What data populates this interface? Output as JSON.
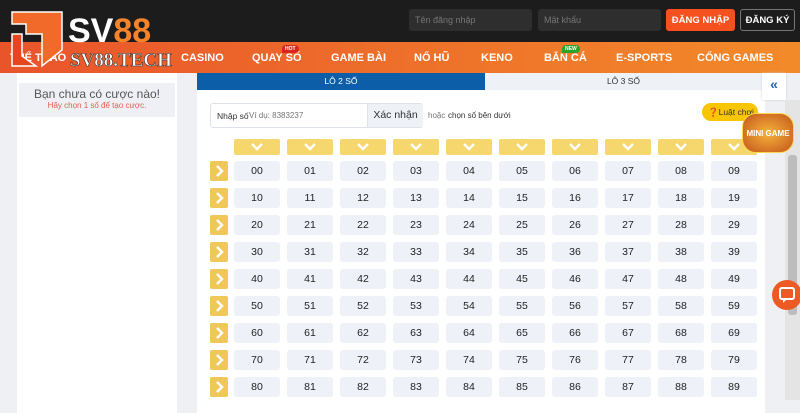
{
  "header": {
    "brand": "SV88",
    "brand_sub": "SV88.TECH",
    "username_placeholder": "Tên đăng nhập",
    "password_placeholder": "Mật khẩu",
    "login_label": "ĐĂNG NHẬP",
    "register_label": "ĐĂNG KÝ"
  },
  "nav": {
    "items": [
      {
        "label": "THỂ THAO"
      },
      {
        "label": "CASINO"
      },
      {
        "label": "QUAY SỐ",
        "badge": "HOT"
      },
      {
        "label": "GAME BÀI"
      },
      {
        "label": "NỔ HŨ"
      },
      {
        "label": "KENO"
      },
      {
        "label": "BẮN CÁ",
        "badge": "NEW"
      },
      {
        "label": "E-SPORTS"
      },
      {
        "label": "CỔNG GAMES"
      }
    ]
  },
  "betslip": {
    "title": "Bạn chưa có cược nào!",
    "hint": "Hãy chọn 1 số để tạo cược."
  },
  "tabs": [
    {
      "label": "LÔ 2 SỐ",
      "active": true
    },
    {
      "label": "LÔ 3 SỐ",
      "active": false
    }
  ],
  "entry": {
    "label": "Nhập số",
    "placeholder": "Ví dụ: 8383237",
    "confirm_label": "Xác nhận",
    "or_text": "hoặc",
    "or_bold": "chọn số bên dưới",
    "rules_label": "Luật chơi"
  },
  "minigame_label": "MINI GAME",
  "grid": {
    "rows": [
      [
        "00",
        "01",
        "02",
        "03",
        "04",
        "05",
        "06",
        "07",
        "08",
        "09"
      ],
      [
        "10",
        "11",
        "12",
        "13",
        "14",
        "15",
        "16",
        "17",
        "18",
        "19"
      ],
      [
        "20",
        "21",
        "22",
        "23",
        "24",
        "25",
        "26",
        "27",
        "28",
        "29"
      ],
      [
        "30",
        "31",
        "32",
        "33",
        "34",
        "35",
        "36",
        "37",
        "38",
        "39"
      ],
      [
        "40",
        "41",
        "42",
        "43",
        "44",
        "45",
        "46",
        "47",
        "48",
        "49"
      ],
      [
        "50",
        "51",
        "52",
        "53",
        "54",
        "55",
        "56",
        "57",
        "58",
        "59"
      ],
      [
        "60",
        "61",
        "62",
        "63",
        "64",
        "65",
        "66",
        "67",
        "68",
        "69"
      ],
      [
        "70",
        "71",
        "72",
        "73",
        "74",
        "75",
        "76",
        "77",
        "78",
        "79"
      ],
      [
        "80",
        "81",
        "82",
        "83",
        "84",
        "85",
        "86",
        "87",
        "88",
        "89"
      ]
    ]
  },
  "colors": {
    "accent": "#f15a24",
    "tab_active": "#0d5ea8",
    "chip": "#f5d76e"
  }
}
